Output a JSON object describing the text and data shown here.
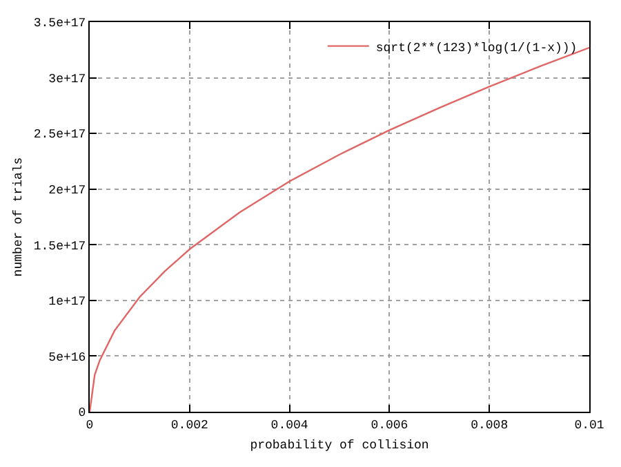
{
  "chart_data": {
    "type": "line",
    "xlabel": "probability of collision",
    "ylabel": "number of trials",
    "x": [
      0,
      0.0001,
      0.0002,
      0.0005,
      0.001,
      0.0015,
      0.002,
      0.003,
      0.004,
      0.005,
      0.006,
      0.007,
      0.008,
      0.009,
      0.01
    ],
    "series": [
      {
        "name": "sqrt(2**(123)*log(1/(1-x)))",
        "color": "#e06666",
        "values": [
          0,
          3.3e+16,
          4.6e+16,
          7.3e+16,
          1.03e+17,
          1.26e+17,
          1.46e+17,
          1.79e+17,
          2.07e+17,
          2.31e+17,
          2.53e+17,
          2.73e+17,
          2.92e+17,
          3.1e+17,
          3.27e+17
        ]
      }
    ],
    "xlim": [
      0,
      0.01
    ],
    "xticks": [
      0,
      0.002,
      0.004,
      0.006,
      0.008,
      0.01
    ],
    "ylim": [
      0,
      3.5e+17
    ],
    "yticks": [
      0,
      {
        "value": 5e+16,
        "label": "5e+16"
      },
      {
        "value": 1e+17,
        "label": "1e+17"
      },
      {
        "value": 1.5e+17,
        "label": "1.5e+17"
      },
      {
        "value": 2e+17,
        "label": "2e+17"
      },
      {
        "value": 2.5e+17,
        "label": "2.5e+17"
      },
      {
        "value": 3e+17,
        "label": "3e+17"
      },
      {
        "value": 3.5e+17,
        "label": "3.5e+17"
      }
    ],
    "grid": true,
    "legend": "top right",
    "marker": "none",
    "line_style": "solid"
  }
}
